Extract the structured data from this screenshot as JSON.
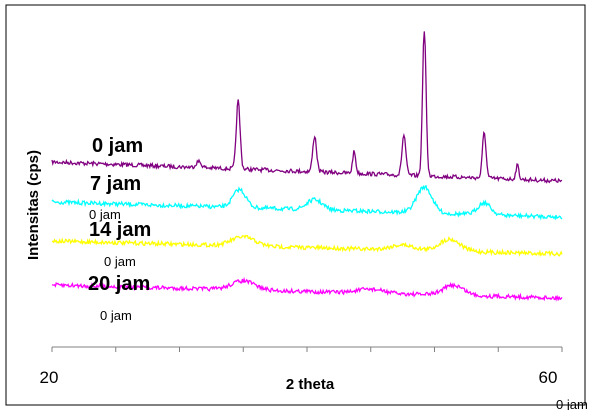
{
  "chart_data": {
    "type": "line",
    "xlabel": "2 theta",
    "ylabel": "Intensitas (cps)",
    "xlim": [
      20,
      60
    ],
    "x_tick_labels": [
      "20",
      "60"
    ],
    "corner_label": "0 jam",
    "grid": false,
    "series": [
      {
        "name": "0 jam",
        "sublabel": "",
        "color": "#800080",
        "baseline": 0.0,
        "peaks": [
          {
            "x": 34.6,
            "height": 68,
            "width": 0.15
          },
          {
            "x": 40.6,
            "height": 36,
            "width": 0.15
          },
          {
            "x": 43.7,
            "height": 22,
            "width": 0.12
          },
          {
            "x": 47.6,
            "height": 40,
            "width": 0.15
          },
          {
            "x": 49.2,
            "height": 145,
            "width": 0.14
          },
          {
            "x": 53.9,
            "height": 46,
            "width": 0.14
          },
          {
            "x": 56.5,
            "height": 14,
            "width": 0.12
          },
          {
            "x": 31.5,
            "height": 6,
            "width": 0.2
          }
        ]
      },
      {
        "name": "7 jam",
        "sublabel": "0 jam",
        "color": "#00FFFF",
        "baseline": 0.0,
        "peaks": [
          {
            "x": 34.7,
            "height": 18,
            "width": 0.5
          },
          {
            "x": 40.6,
            "height": 10,
            "width": 0.6
          },
          {
            "x": 49.2,
            "height": 26,
            "width": 0.6
          },
          {
            "x": 53.9,
            "height": 12,
            "width": 0.5
          }
        ]
      },
      {
        "name": "14 jam",
        "sublabel": "0 jam",
        "color": "#FFFF00",
        "baseline": 0.0,
        "peaks": [
          {
            "x": 35.0,
            "height": 9,
            "width": 0.9
          },
          {
            "x": 47.5,
            "height": 5,
            "width": 0.9
          },
          {
            "x": 51.2,
            "height": 12,
            "width": 0.8
          }
        ]
      },
      {
        "name": "20 jam",
        "sublabel": "0 jam",
        "color": "#FF00FF",
        "baseline": 0.0,
        "peaks": [
          {
            "x": 35.0,
            "height": 9,
            "width": 0.9
          },
          {
            "x": 45.0,
            "height": 4,
            "width": 1.0
          },
          {
            "x": 51.5,
            "height": 10,
            "width": 0.8
          }
        ]
      }
    ]
  }
}
